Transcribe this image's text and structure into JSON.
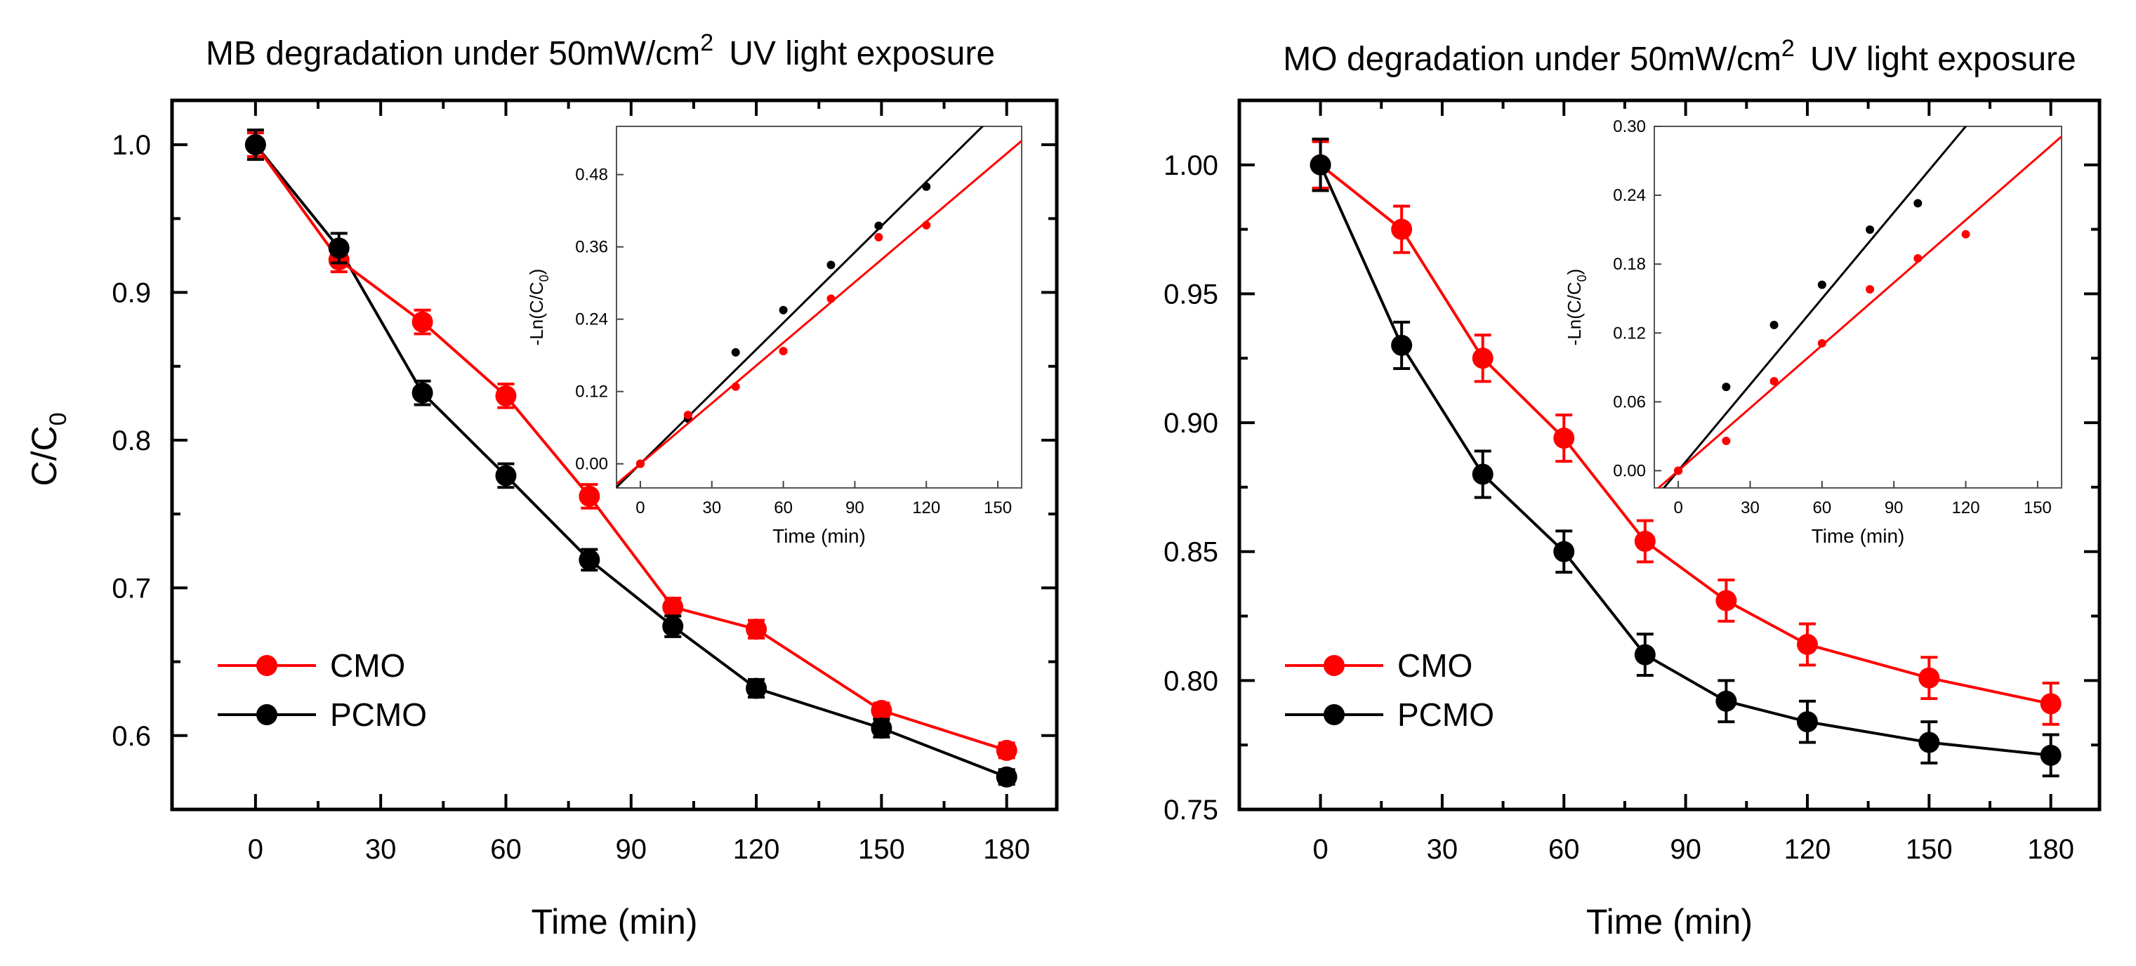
{
  "chart_data": [
    {
      "type": "line",
      "title_main": "MB degradation under 50mW/cm",
      "title_sup": "2",
      "title_tail": "UV light exposure",
      "xlabel": "Time (min)",
      "ylabel_main": "C/C",
      "ylabel_sub": "0",
      "xlim": [
        -20,
        192
      ],
      "ylim": [
        0.55,
        1.03
      ],
      "xticks": [
        0,
        30,
        60,
        90,
        120,
        150,
        180
      ],
      "xtick_labels": [
        "0",
        "30",
        "60",
        "90",
        "120",
        "150",
        "180"
      ],
      "yticks": [
        0.6,
        0.7,
        0.8,
        0.9,
        1.0
      ],
      "ytick_labels": [
        "0.6",
        "0.7",
        "0.8",
        "0.9",
        "1.0"
      ],
      "legend_position": "bottom-left",
      "series": [
        {
          "name": "CMO",
          "color": "#ff0000",
          "x": [
            0,
            20,
            40,
            60,
            80,
            100,
            120,
            150,
            180
          ],
          "y": [
            1.0,
            0.922,
            0.88,
            0.83,
            0.762,
            0.687,
            0.672,
            0.617,
            0.59
          ],
          "err": [
            0.008,
            0.008,
            0.008,
            0.008,
            0.008,
            0.006,
            0.006,
            0.005,
            0.005
          ]
        },
        {
          "name": "PCMO",
          "color": "#000000",
          "x": [
            0,
            20,
            40,
            60,
            80,
            100,
            120,
            150,
            180
          ],
          "y": [
            1.0,
            0.93,
            0.832,
            0.776,
            0.719,
            0.674,
            0.632,
            0.605,
            0.572
          ],
          "err": [
            0.01,
            0.01,
            0.008,
            0.008,
            0.007,
            0.007,
            0.006,
            0.006,
            0.005
          ]
        }
      ],
      "inset": {
        "xlabel": "Time (min)",
        "ylabel": "-Ln(C/C",
        "ylabel_sub": "0",
        "ylabel_close": ")",
        "xlim": [
          -10,
          160
        ],
        "ylim": [
          -0.04,
          0.56
        ],
        "xticks": [
          0,
          30,
          60,
          90,
          120,
          150
        ],
        "xtick_labels": [
          "0",
          "30",
          "60",
          "90",
          "120",
          "150"
        ],
        "yticks": [
          0.0,
          0.12,
          0.24,
          0.36,
          0.48
        ],
        "ytick_labels": [
          "0.00",
          "0.12",
          "0.24",
          "0.36",
          "0.48"
        ],
        "series": [
          {
            "name": "PCMO",
            "color": "#000000",
            "x": [
              0,
              20,
              40,
              60,
              80,
              100,
              120
            ],
            "y": [
              0.0,
              0.075,
              0.185,
              0.255,
              0.33,
              0.395,
              0.46
            ],
            "fit_slope": 0.0039
          },
          {
            "name": "CMO",
            "color": "#ff0000",
            "x": [
              0,
              20,
              40,
              60,
              80,
              100,
              120
            ],
            "y": [
              0.0,
              0.081,
              0.128,
              0.187,
              0.274,
              0.376,
              0.396
            ],
            "fit_slope": 0.00335
          }
        ]
      }
    },
    {
      "type": "line",
      "title_main": "MO degradation under 50mW/cm",
      "title_sup": "2",
      "title_tail": "UV light exposure",
      "xlabel": "Time (min)",
      "ylabel_main": "",
      "ylabel_sub": "",
      "xlim": [
        -20,
        192
      ],
      "ylim": [
        0.75,
        1.025
      ],
      "xticks": [
        0,
        30,
        60,
        90,
        120,
        150,
        180
      ],
      "xtick_labels": [
        "0",
        "30",
        "60",
        "90",
        "120",
        "150",
        "180"
      ],
      "yticks": [
        0.75,
        0.8,
        0.85,
        0.9,
        0.95,
        1.0
      ],
      "ytick_labels": [
        "0.75",
        "0.80",
        "0.85",
        "0.90",
        "0.95",
        "1.00"
      ],
      "legend_position": "bottom-left",
      "series": [
        {
          "name": "CMO",
          "color": "#ff0000",
          "x": [
            0,
            20,
            40,
            60,
            80,
            100,
            120,
            150,
            180
          ],
          "y": [
            1.0,
            0.975,
            0.925,
            0.894,
            0.854,
            0.831,
            0.814,
            0.801,
            0.791
          ],
          "err": [
            0.009,
            0.009,
            0.009,
            0.009,
            0.008,
            0.008,
            0.008,
            0.008,
            0.008
          ]
        },
        {
          "name": "PCMO",
          "color": "#000000",
          "x": [
            0,
            20,
            40,
            60,
            80,
            100,
            120,
            150,
            180
          ],
          "y": [
            1.0,
            0.93,
            0.88,
            0.85,
            0.81,
            0.792,
            0.784,
            0.776,
            0.771
          ],
          "err": [
            0.01,
            0.009,
            0.009,
            0.008,
            0.008,
            0.008,
            0.008,
            0.008,
            0.008
          ]
        }
      ],
      "inset": {
        "xlabel": "Time (min)",
        "ylabel": "-Ln(C/C",
        "ylabel_sub": "0",
        "ylabel_close": ")",
        "xlim": [
          -10,
          160
        ],
        "ylim": [
          -0.015,
          0.3
        ],
        "xticks": [
          0,
          30,
          60,
          90,
          120,
          150
        ],
        "xtick_labels": [
          "0",
          "30",
          "60",
          "90",
          "120",
          "150"
        ],
        "yticks": [
          0.0,
          0.06,
          0.12,
          0.18,
          0.24,
          0.3
        ],
        "ytick_labels": [
          "0.00",
          "0.06",
          "0.12",
          "0.18",
          "0.24",
          "0.30"
        ],
        "series": [
          {
            "name": "PCMO",
            "color": "#000000",
            "x": [
              0,
              20,
              40,
              60,
              80,
              100
            ],
            "y": [
              0.0,
              0.073,
              0.127,
              0.162,
              0.21,
              0.233
            ],
            "fit_slope": 0.0025
          },
          {
            "name": "CMO",
            "color": "#ff0000",
            "x": [
              0,
              20,
              40,
              60,
              80,
              100,
              120
            ],
            "y": [
              0.0,
              0.026,
              0.078,
              0.111,
              0.158,
              0.185,
              0.206
            ],
            "fit_slope": 0.00182
          }
        ]
      }
    }
  ]
}
